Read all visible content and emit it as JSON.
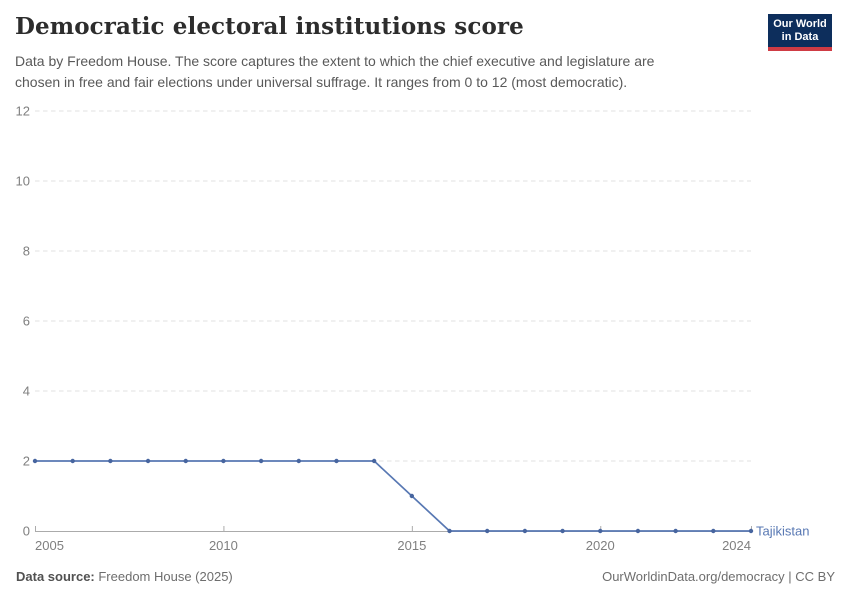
{
  "header": {
    "title": "Democratic electoral institutions score",
    "subtitle_line1": "Data by Freedom House. The score captures the extent to which the chief executive and legislature are",
    "subtitle_line2": "chosen in free and fair elections under universal suffrage. It ranges from 0 to 12 (most democratic).",
    "logo": {
      "line1": "Our World",
      "line2": "in Data"
    }
  },
  "footer": {
    "source_label": "Data source:",
    "source_value": " Freedom House (2025)",
    "link": "OurWorldinData.org/democracy",
    "suffix": " | CC BY"
  },
  "colors": {
    "line": "#5878b3",
    "dot": "#47659f",
    "series_label": "#5878b3",
    "gridline": "#e0e0e0",
    "axis": "#ababab",
    "tick_label": "#7f7f7f",
    "logo_bg": "#0d2e5c",
    "logo_accent": "#cf3b44"
  },
  "chart_data": {
    "type": "line",
    "title": "Democratic electoral institutions score",
    "x": [
      2005,
      2006,
      2007,
      2008,
      2009,
      2010,
      2011,
      2012,
      2013,
      2014,
      2015,
      2016,
      2017,
      2018,
      2019,
      2020,
      2021,
      2022,
      2023,
      2024
    ],
    "series": [
      {
        "name": "Tajikistan",
        "color": "#5878b3",
        "values": [
          2,
          2,
          2,
          2,
          2,
          2,
          2,
          2,
          2,
          2,
          1,
          0,
          0,
          0,
          0,
          0,
          0,
          0,
          0,
          0
        ]
      }
    ],
    "xticks": [
      2005,
      2010,
      2015,
      2020,
      2024
    ],
    "yticks": [
      0,
      2,
      4,
      6,
      8,
      10,
      12
    ],
    "xlim": [
      2005,
      2024
    ],
    "ylim": [
      0,
      12
    ],
    "grid": "dashed-horizontal",
    "legend_position": "end-of-line"
  }
}
